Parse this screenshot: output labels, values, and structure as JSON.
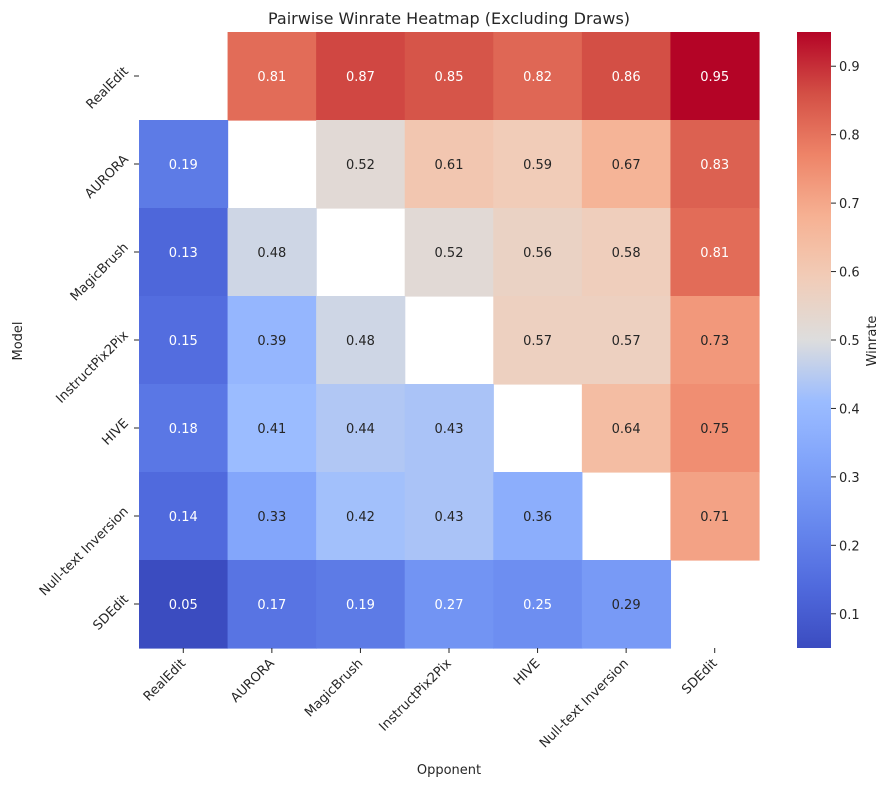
{
  "chart_data": {
    "type": "heatmap",
    "title": "Pairwise Winrate Heatmap (Excluding Draws)",
    "xlabel": "Opponent",
    "ylabel": "Model",
    "rows": [
      "RealEdit",
      "AURORA",
      "MagicBrush",
      "InstructPix2Pix",
      "HIVE",
      "Null-text Inversion",
      "SDEdit"
    ],
    "columns": [
      "RealEdit",
      "AURORA",
      "MagicBrush",
      "InstructPix2Pix",
      "HIVE",
      "Null-text Inversion",
      "SDEdit"
    ],
    "values": [
      [
        null,
        0.81,
        0.87,
        0.85,
        0.82,
        0.86,
        0.95
      ],
      [
        0.19,
        null,
        0.52,
        0.61,
        0.59,
        0.67,
        0.83
      ],
      [
        0.13,
        0.48,
        null,
        0.52,
        0.56,
        0.58,
        0.81
      ],
      [
        0.15,
        0.39,
        0.48,
        null,
        0.57,
        0.57,
        0.73
      ],
      [
        0.18,
        0.41,
        0.44,
        0.43,
        null,
        0.64,
        0.75
      ],
      [
        0.14,
        0.33,
        0.42,
        0.43,
        0.36,
        null,
        0.71
      ],
      [
        0.05,
        0.17,
        0.19,
        0.27,
        0.25,
        0.29,
        null
      ]
    ],
    "colormap": "coolwarm",
    "vmin": 0.05,
    "vmax": 0.95,
    "colorbar": {
      "label": "Winrate",
      "ticks": [
        0.1,
        0.2,
        0.3,
        0.4,
        0.5,
        0.6,
        0.7,
        0.8,
        0.9
      ],
      "tick_labels": [
        "0.1",
        "0.2",
        "0.3",
        "0.4",
        "0.5",
        "0.6",
        "0.7",
        "0.8",
        "0.9"
      ]
    },
    "colors": {
      "low": "#3b4cc0",
      "mid": "#dddddd",
      "high": "#b40426",
      "text_dark": "#262626",
      "text_light": "#ffffff"
    }
  }
}
